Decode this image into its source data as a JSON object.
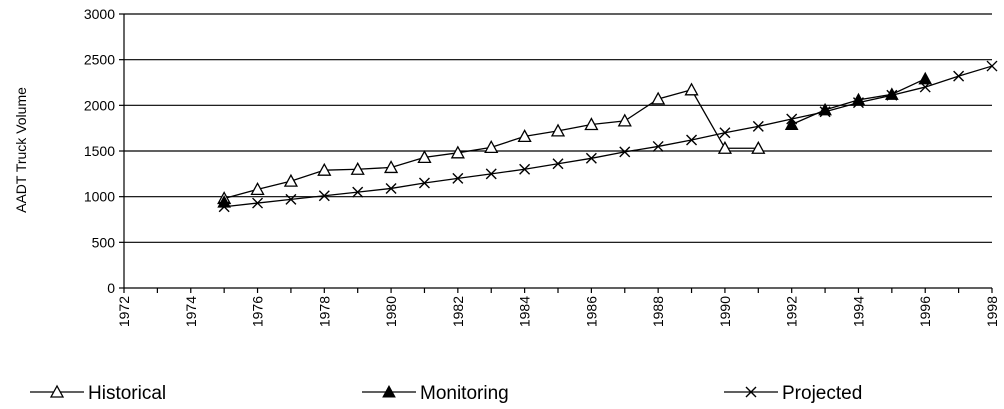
{
  "chart_data": {
    "type": "line",
    "title": "",
    "xlabel": "",
    "ylabel": "AADT Truck Volume",
    "xlim": [
      1972,
      1998
    ],
    "ylim": [
      0,
      3000
    ],
    "x_ticks": [
      "1972",
      "1974",
      "1976",
      "1978",
      "1980",
      "1982",
      "1984",
      "1986",
      "1988",
      "1990",
      "1992",
      "1994",
      "1996",
      "1998"
    ],
    "y_ticks": [
      "0",
      "500",
      "1000",
      "1500",
      "2000",
      "2500",
      "3000"
    ],
    "grid": "horizontal",
    "legend": "bottom",
    "series": [
      {
        "name": "Historical",
        "marker": "open-triangle",
        "points": [
          [
            1975,
            980
          ],
          [
            1976,
            1080
          ],
          [
            1977,
            1170
          ],
          [
            1978,
            1290
          ],
          [
            1979,
            1300
          ],
          [
            1980,
            1320
          ],
          [
            1981,
            1430
          ],
          [
            1982,
            1480
          ],
          [
            1983,
            1540
          ],
          [
            1984,
            1660
          ],
          [
            1985,
            1720
          ],
          [
            1986,
            1790
          ],
          [
            1987,
            1830
          ],
          [
            1988,
            2070
          ],
          [
            1989,
            2170
          ],
          [
            1990,
            1530
          ],
          [
            1991,
            1530
          ]
        ]
      },
      {
        "name": "Monitoring",
        "marker": "filled-triangle",
        "points": [
          [
            1975,
            940
          ],
          [
            1992,
            1790
          ],
          [
            1993,
            1950
          ],
          [
            1994,
            2060
          ],
          [
            1995,
            2120
          ],
          [
            1996,
            2290
          ]
        ]
      },
      {
        "name": "Projected",
        "marker": "x",
        "points": [
          [
            1975,
            890
          ],
          [
            1976,
            930
          ],
          [
            1977,
            970
          ],
          [
            1978,
            1010
          ],
          [
            1979,
            1050
          ],
          [
            1980,
            1090
          ],
          [
            1981,
            1150
          ],
          [
            1982,
            1200
          ],
          [
            1983,
            1250
          ],
          [
            1984,
            1300
          ],
          [
            1985,
            1360
          ],
          [
            1986,
            1420
          ],
          [
            1987,
            1490
          ],
          [
            1988,
            1550
          ],
          [
            1989,
            1620
          ],
          [
            1990,
            1700
          ],
          [
            1991,
            1770
          ],
          [
            1992,
            1850
          ],
          [
            1993,
            1930
          ],
          [
            1994,
            2030
          ],
          [
            1995,
            2110
          ],
          [
            1996,
            2200
          ],
          [
            1997,
            2320
          ],
          [
            1998,
            2430
          ]
        ]
      }
    ]
  }
}
